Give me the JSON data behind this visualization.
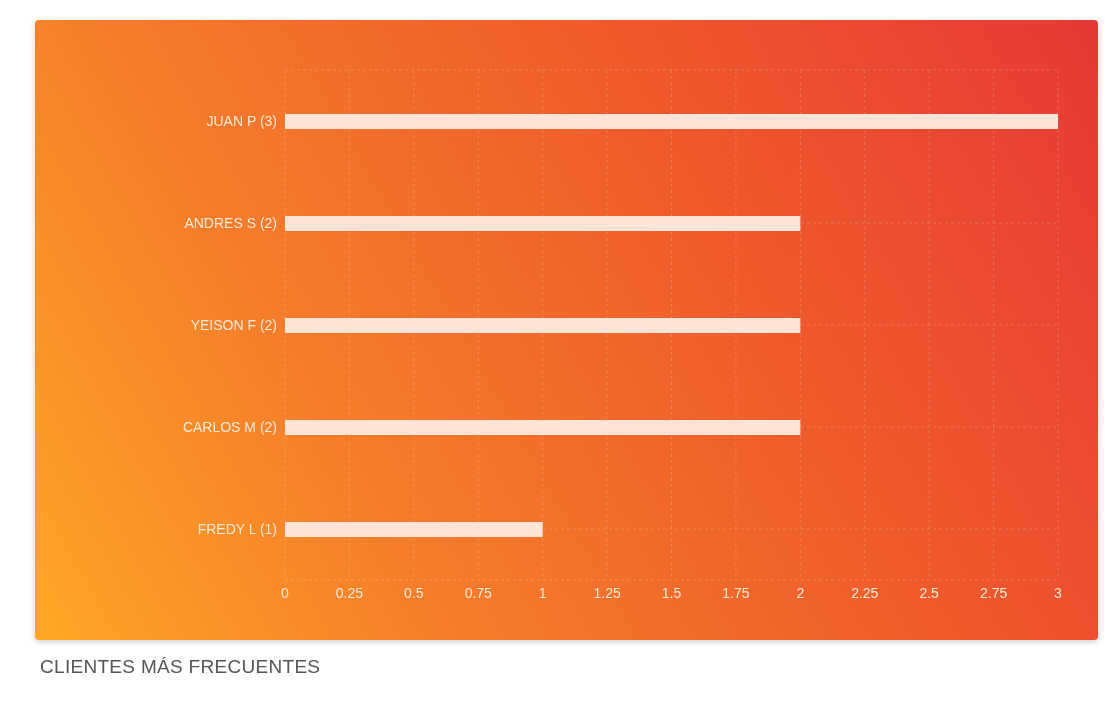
{
  "chart_data": {
    "type": "bar",
    "orientation": "horizontal",
    "title": "CLIENTES MÁS FRECUENTES",
    "categories": [
      "JUAN P (3)",
      "ANDRES S (2)",
      "YEISON F (2)",
      "CARLOS M (2)",
      "FREDY L (1)"
    ],
    "values": [
      3,
      2,
      2,
      2,
      1
    ],
    "color": "#fde4d6",
    "xlim": [
      0,
      3
    ],
    "xticks": [
      0,
      0.25,
      0.5,
      0.75,
      1,
      1.25,
      1.5,
      1.75,
      2,
      2.25,
      2.5,
      2.75,
      3
    ],
    "grid": true
  }
}
